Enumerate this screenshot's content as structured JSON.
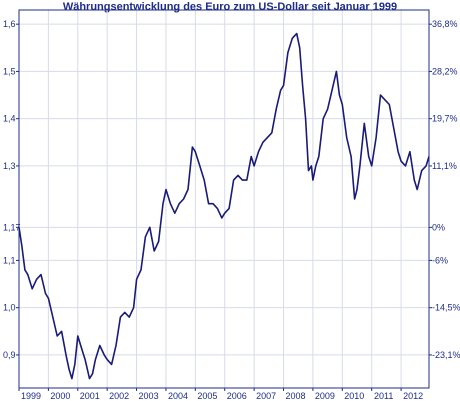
{
  "chart_data": {
    "type": "line",
    "title": "Währungsentwicklung des Euro zum US-Dollar seit Januar 1999",
    "xlabel": "",
    "ylabel": "",
    "grid": true,
    "colors": {
      "line": "#1a1a7a",
      "text": "#1f2d8a",
      "grid": "#d8dbe8",
      "axis": "#1f2d8a"
    },
    "x_ticks": [
      "1999",
      "2000",
      "2001",
      "2002",
      "2003",
      "2004",
      "2005",
      "2006",
      "2007",
      "2008",
      "2009",
      "2010",
      "2011",
      "2012"
    ],
    "left_ticks": [
      {
        "value": 0.9,
        "label": "0,9"
      },
      {
        "value": 1.0,
        "label": "1,0"
      },
      {
        "value": 1.1,
        "label": "1,1"
      },
      {
        "value": 1.17,
        "label": "1,17"
      },
      {
        "value": 1.3,
        "label": "1,3"
      },
      {
        "value": 1.4,
        "label": "1,4"
      },
      {
        "value": 1.5,
        "label": "1,5"
      },
      {
        "value": 1.6,
        "label": "1,6"
      }
    ],
    "right_ticks": [
      {
        "value": 1.6,
        "label": "36,8%"
      },
      {
        "value": 1.5,
        "label": "28,2%"
      },
      {
        "value": 1.4,
        "label": "19,7%"
      },
      {
        "value": 1.3,
        "label": "11,1%"
      },
      {
        "value": 1.17,
        "label": "0%"
      },
      {
        "value": 1.1,
        "label": "-6%"
      },
      {
        "value": 1.0,
        "label": "-14,5%"
      },
      {
        "value": 0.9,
        "label": "-23,1%"
      }
    ],
    "ylim": [
      0.83,
      1.63
    ],
    "xlim": [
      1999.0,
      2012.95
    ],
    "series": [
      {
        "x": [
          1999.0,
          1999.1,
          1999.2,
          1999.3,
          1999.45,
          1999.6,
          1999.75,
          1999.9,
          2000.0,
          2000.15,
          2000.3,
          2000.45,
          2000.6,
          2000.7,
          2000.8,
          2000.9,
          2001.0,
          2001.1,
          2001.25,
          2001.4,
          2001.5,
          2001.6,
          2001.75,
          2001.9,
          2002.0,
          2002.15,
          2002.3,
          2002.45,
          2002.6,
          2002.75,
          2002.9,
          2003.0,
          2003.15,
          2003.3,
          2003.45,
          2003.6,
          2003.75,
          2003.9,
          2004.0,
          2004.15,
          2004.3,
          2004.45,
          2004.6,
          2004.75,
          2004.9,
          2005.0,
          2005.15,
          2005.3,
          2005.45,
          2005.6,
          2005.75,
          2005.9,
          2006.0,
          2006.15,
          2006.3,
          2006.45,
          2006.6,
          2006.75,
          2006.9,
          2007.0,
          2007.15,
          2007.3,
          2007.45,
          2007.6,
          2007.75,
          2007.9,
          2008.0,
          2008.15,
          2008.3,
          2008.45,
          2008.55,
          2008.65,
          2008.75,
          2008.85,
          2008.95,
          2009.0,
          2009.1,
          2009.2,
          2009.35,
          2009.5,
          2009.65,
          2009.8,
          2009.9,
          2010.0,
          2010.15,
          2010.3,
          2010.42,
          2010.5,
          2010.6,
          2010.75,
          2010.9,
          2011.0,
          2011.15,
          2011.3,
          2011.45,
          2011.6,
          2011.75,
          2011.9,
          2012.0,
          2012.15,
          2012.3,
          2012.45,
          2012.55,
          2012.7,
          2012.85,
          2012.95
        ],
        "y": [
          1.17,
          1.13,
          1.08,
          1.07,
          1.04,
          1.06,
          1.07,
          1.03,
          1.02,
          0.98,
          0.94,
          0.95,
          0.9,
          0.87,
          0.85,
          0.88,
          0.94,
          0.92,
          0.89,
          0.85,
          0.86,
          0.89,
          0.92,
          0.9,
          0.89,
          0.88,
          0.92,
          0.98,
          0.99,
          0.98,
          1.0,
          1.06,
          1.08,
          1.15,
          1.17,
          1.12,
          1.14,
          1.22,
          1.25,
          1.22,
          1.2,
          1.22,
          1.23,
          1.25,
          1.34,
          1.33,
          1.3,
          1.27,
          1.22,
          1.22,
          1.21,
          1.19,
          1.2,
          1.21,
          1.27,
          1.28,
          1.27,
          1.27,
          1.32,
          1.3,
          1.33,
          1.35,
          1.36,
          1.37,
          1.42,
          1.46,
          1.47,
          1.54,
          1.57,
          1.58,
          1.55,
          1.47,
          1.4,
          1.29,
          1.3,
          1.27,
          1.3,
          1.32,
          1.4,
          1.42,
          1.46,
          1.5,
          1.45,
          1.43,
          1.36,
          1.32,
          1.23,
          1.25,
          1.3,
          1.39,
          1.32,
          1.3,
          1.36,
          1.45,
          1.44,
          1.43,
          1.38,
          1.33,
          1.31,
          1.3,
          1.33,
          1.27,
          1.25,
          1.29,
          1.3,
          1.32
        ]
      }
    ]
  }
}
